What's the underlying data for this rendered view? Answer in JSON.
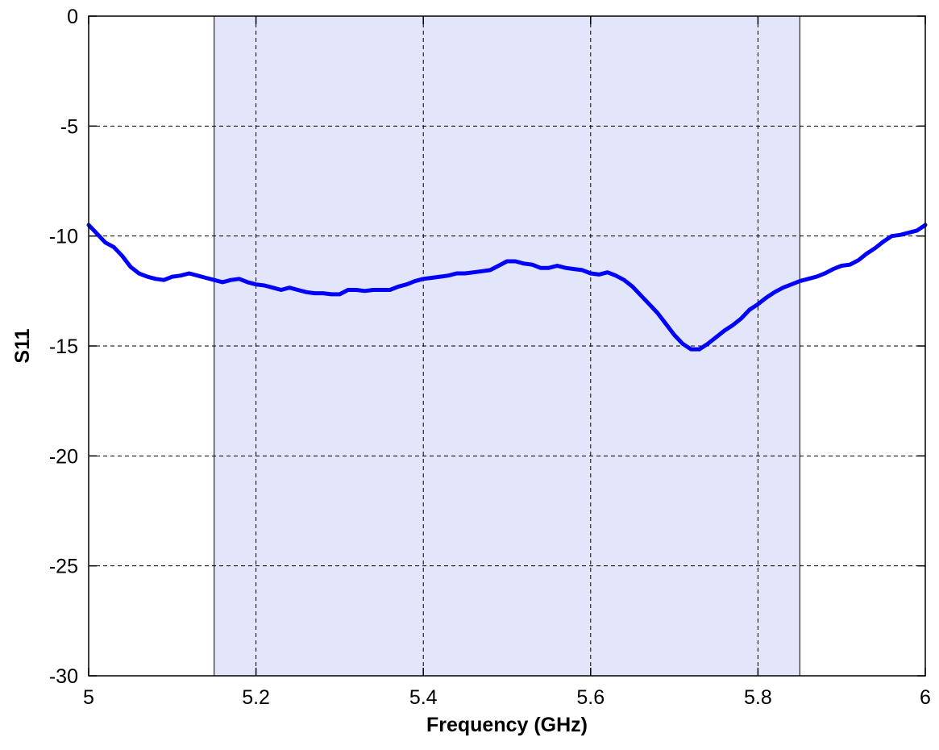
{
  "chart_data": {
    "type": "line",
    "title": "",
    "xlabel": "Frequency (GHz)",
    "ylabel": "S11",
    "xlim": [
      5,
      6
    ],
    "ylim": [
      -30,
      0
    ],
    "xticks": [
      5,
      5.2,
      5.4,
      5.6,
      5.8,
      6
    ],
    "xtick_labels": [
      "5",
      "5.2",
      "5.4",
      "5.6",
      "5.8",
      "6"
    ],
    "yticks": [
      0,
      -5,
      -10,
      -15,
      -20,
      -25,
      -30
    ],
    "ytick_labels": [
      "0",
      "-5",
      "-10",
      "-15",
      "-20",
      "-25",
      "-30"
    ],
    "grid": true,
    "shaded_band": {
      "x_range": [
        5.15,
        5.85
      ],
      "color": "#e3e5fb"
    },
    "line_color": "#0000ff",
    "series": [
      {
        "x": [
          5.0,
          5.01,
          5.02,
          5.03,
          5.04,
          5.05,
          5.06,
          5.07,
          5.08,
          5.09,
          5.1,
          5.11,
          5.12,
          5.13,
          5.14,
          5.15,
          5.16,
          5.17,
          5.18,
          5.19,
          5.2,
          5.21,
          5.22,
          5.23,
          5.24,
          5.25,
          5.26,
          5.27,
          5.28,
          5.29,
          5.3,
          5.31,
          5.32,
          5.33,
          5.34,
          5.35,
          5.36,
          5.37,
          5.38,
          5.39,
          5.4,
          5.41,
          5.42,
          5.43,
          5.44,
          5.45,
          5.46,
          5.47,
          5.48,
          5.49,
          5.5,
          5.51,
          5.52,
          5.53,
          5.54,
          5.55,
          5.56,
          5.57,
          5.58,
          5.59,
          5.6,
          5.61,
          5.62,
          5.63,
          5.64,
          5.65,
          5.66,
          5.67,
          5.68,
          5.69,
          5.7,
          5.71,
          5.72,
          5.73,
          5.74,
          5.75,
          5.76,
          5.77,
          5.78,
          5.79,
          5.8,
          5.81,
          5.82,
          5.83,
          5.84,
          5.85,
          5.86,
          5.87,
          5.88,
          5.89,
          5.9,
          5.91,
          5.92,
          5.93,
          5.94,
          5.95,
          5.96,
          5.97,
          5.98,
          5.99,
          6.0
        ],
        "y": [
          -9.5,
          -9.9,
          -10.3,
          -10.5,
          -10.9,
          -11.4,
          -11.7,
          -11.85,
          -11.95,
          -12.0,
          -11.85,
          -11.8,
          -11.7,
          -11.8,
          -11.9,
          -12.0,
          -12.1,
          -12.0,
          -11.95,
          -12.1,
          -12.2,
          -12.25,
          -12.35,
          -12.45,
          -12.35,
          -12.45,
          -12.55,
          -12.6,
          -12.6,
          -12.65,
          -12.65,
          -12.45,
          -12.45,
          -12.5,
          -12.45,
          -12.45,
          -12.45,
          -12.3,
          -12.2,
          -12.05,
          -11.95,
          -11.9,
          -11.85,
          -11.8,
          -11.7,
          -11.7,
          -11.65,
          -11.6,
          -11.55,
          -11.35,
          -11.15,
          -11.15,
          -11.25,
          -11.3,
          -11.45,
          -11.45,
          -11.35,
          -11.45,
          -11.5,
          -11.55,
          -11.7,
          -11.75,
          -11.65,
          -11.8,
          -12.0,
          -12.3,
          -12.7,
          -13.1,
          -13.5,
          -14.0,
          -14.5,
          -14.9,
          -15.15,
          -15.15,
          -14.9,
          -14.6,
          -14.3,
          -14.05,
          -13.75,
          -13.35,
          -13.1,
          -12.8,
          -12.55,
          -12.35,
          -12.2,
          -12.05,
          -11.95,
          -11.85,
          -11.7,
          -11.5,
          -11.35,
          -11.3,
          -11.1,
          -10.8,
          -10.55,
          -10.25,
          -10.0,
          -9.95,
          -9.85,
          -9.75,
          -9.5
        ]
      }
    ]
  }
}
